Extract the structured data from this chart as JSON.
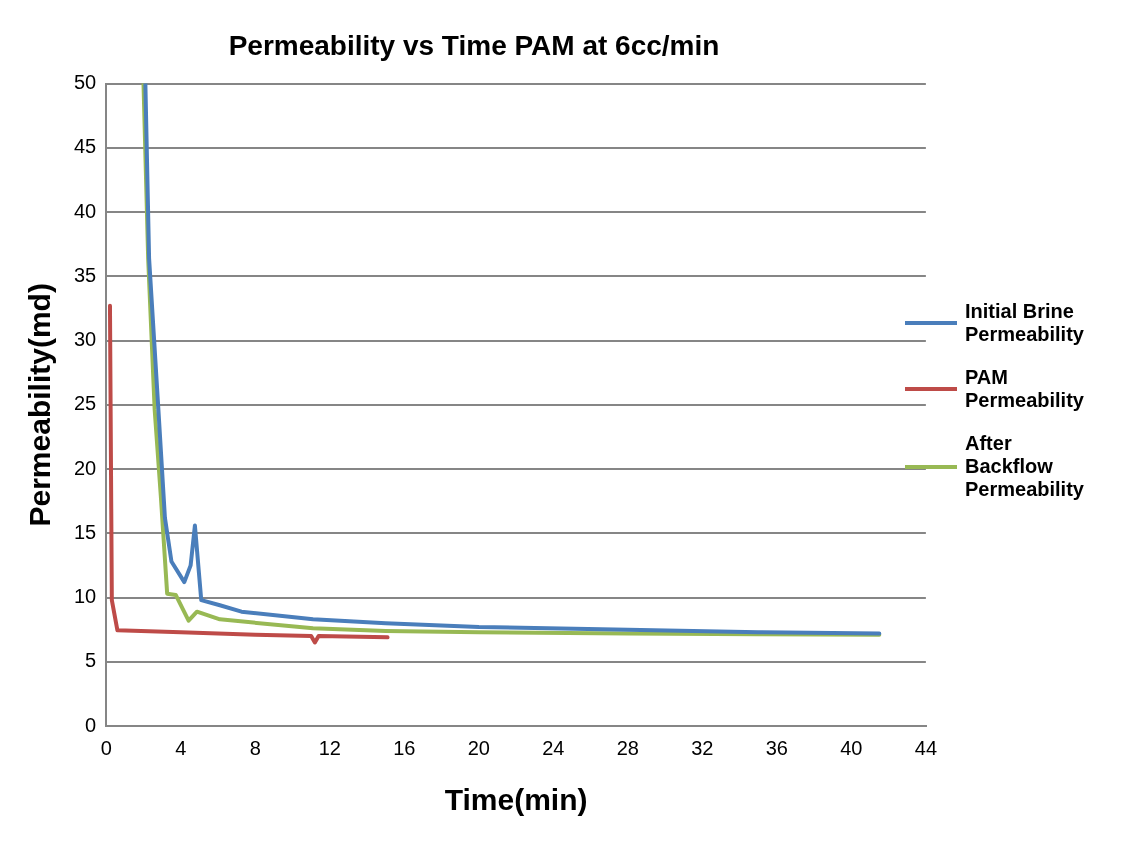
{
  "chart_data": {
    "type": "line",
    "title": "Permeability vs Time PAM at 6cc/min",
    "xlabel": "Time(min)",
    "ylabel": "Permeability(md)",
    "xlim": [
      0,
      44
    ],
    "xticks": [
      0,
      4,
      8,
      12,
      16,
      20,
      24,
      28,
      32,
      36,
      40,
      44
    ],
    "ylim": [
      0,
      50
    ],
    "yticks": [
      0,
      5,
      10,
      15,
      20,
      25,
      30,
      35,
      40,
      45,
      50
    ],
    "grid": "y",
    "legend": "right",
    "marker": "none",
    "line_style": "solid",
    "series": [
      {
        "name": "Initial Brine Permeability",
        "color": "#4a7ebb",
        "x": [
          2.1,
          2.3,
          2.8,
          3.15,
          3.5,
          4.19,
          4.53,
          4.76,
          5.1,
          6.1,
          7.26,
          11.1,
          15,
          20,
          28,
          35,
          41.5
        ],
        "values": [
          50,
          36.4,
          24.6,
          16.2,
          12.8,
          11.2,
          12.5,
          15.6,
          9.8,
          9.4,
          8.9,
          8.3,
          8,
          7.7,
          7.5,
          7.3,
          7.2
        ]
      },
      {
        "name": "PAM Permeability",
        "color": "#be4b48",
        "x": [
          0.2,
          0.3,
          0.6,
          4,
          8,
          11,
          11.2,
          11.4,
          15.1
        ],
        "values": [
          32.7,
          9.8,
          7.45,
          7.3,
          7.1,
          7,
          6.5,
          7,
          6.9
        ]
      },
      {
        "name": "After Backflow Permeability",
        "color": "#98b954",
        "x": [
          2,
          2.25,
          2.6,
          2.93,
          3.27,
          3.73,
          4.42,
          4.87,
          6.1,
          11.1,
          15,
          20,
          28,
          35,
          41.5
        ],
        "values": [
          50,
          36.4,
          24.6,
          17.9,
          10.3,
          10.2,
          8.2,
          8.9,
          8.3,
          7.6,
          7.4,
          7.3,
          7.2,
          7.15,
          7.1
        ]
      }
    ]
  }
}
